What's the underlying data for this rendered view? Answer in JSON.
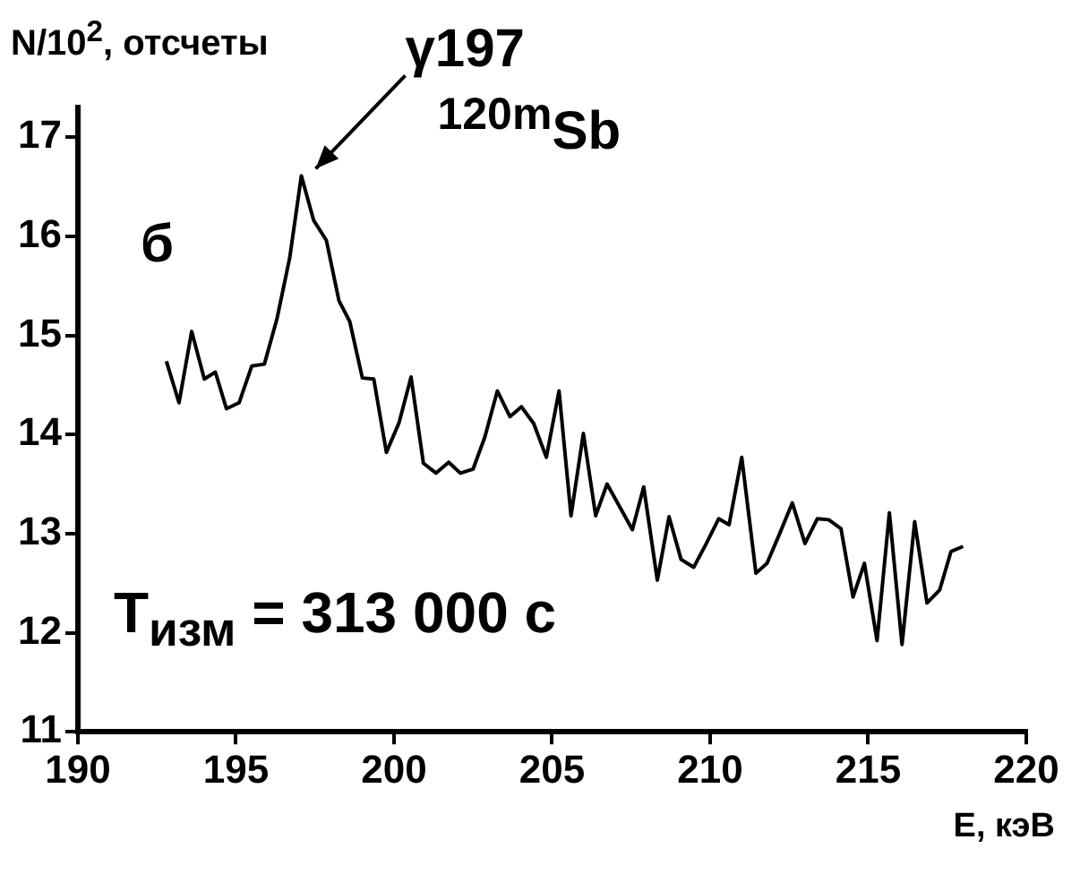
{
  "chart_data": {
    "type": "line",
    "ylabel": "N/10$^{2}$, отсчеты",
    "xlabel": "E, кэВ",
    "x": [
      192.8,
      193.2,
      193.6,
      194.0,
      194.35,
      194.7,
      195.1,
      195.5,
      195.9,
      196.3,
      196.7,
      197.07,
      197.46,
      197.86,
      198.26,
      198.6,
      199.0,
      199.36,
      199.76,
      200.16,
      200.54,
      200.93,
      201.33,
      201.73,
      202.1,
      202.5,
      202.87,
      203.27,
      203.67,
      204.03,
      204.42,
      204.82,
      205.22,
      205.6,
      205.99,
      206.38,
      206.74,
      207.14,
      207.54,
      207.9,
      208.33,
      208.7,
      209.08,
      209.48,
      209.88,
      210.27,
      210.6,
      211.0,
      211.45,
      211.8,
      212.2,
      212.6,
      213.0,
      213.39,
      213.75,
      214.14,
      214.52,
      214.88,
      215.28,
      215.67,
      216.07,
      216.47,
      216.86,
      217.26,
      217.62,
      218.0
    ],
    "series": [
      {
        "color": "#000000",
        "values": [
          14.74,
          14.32,
          15.04,
          14.56,
          14.63,
          14.26,
          14.32,
          14.69,
          14.71,
          15.17,
          15.78,
          16.61,
          16.16,
          15.96,
          15.35,
          15.14,
          14.57,
          14.56,
          13.82,
          14.12,
          14.58,
          13.71,
          13.61,
          13.72,
          13.61,
          13.65,
          13.97,
          14.44,
          14.18,
          14.28,
          14.11,
          13.77,
          14.44,
          13.18,
          14.01,
          13.18,
          13.5,
          13.27,
          13.04,
          13.47,
          12.53,
          13.17,
          12.74,
          12.66,
          12.9,
          13.15,
          13.09,
          13.77,
          12.6,
          12.7,
          13.0,
          13.31,
          12.9,
          13.15,
          13.14,
          13.05,
          12.36,
          12.7,
          11.92,
          13.21,
          11.88,
          13.12,
          12.3,
          12.43,
          12.82,
          12.87
        ]
      }
    ],
    "xlim": [
      190,
      220
    ],
    "xticks": [
      190,
      195,
      200,
      205,
      210,
      215,
      220
    ],
    "ylim": [
      11,
      17.3
    ],
    "yticks": [
      11,
      12,
      13,
      14,
      15,
      16,
      17
    ],
    "grid": false,
    "legend": false,
    "marker": "none",
    "line_style": "solid",
    "annotations": [
      {
        "text": "γ197 $^{120m}$Sb",
        "x": 197.07,
        "y": 16.61
      },
      "б",
      "T$_{изм}$ = 313 000 с"
    ]
  }
}
